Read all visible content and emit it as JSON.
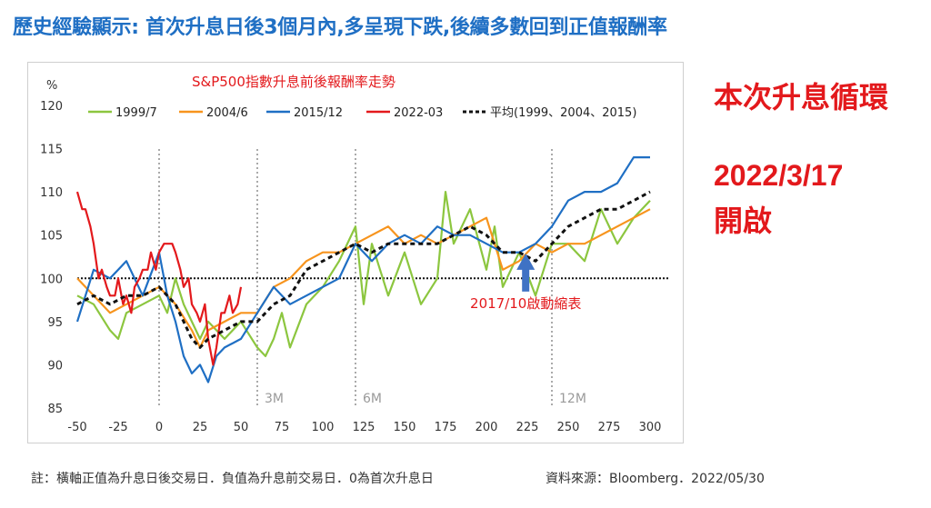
{
  "page": {
    "title": "歷史經驗顯示: 首次升息日後3個月內,多呈現下跌,後續多數回到正值報酬率",
    "side_label": "本次升息循環",
    "side_date": "2022/3/17",
    "side_open": "開啟",
    "footnote": "註：橫軸正值為升息日後交易日．負值為升息前交易日．0為首次升息日",
    "source": "資料來源：Bloomberg．2022/05/30"
  },
  "colors": {
    "s1999": "#8cc63f",
    "s2004": "#f7941d",
    "s2015": "#1f6fc4",
    "s2022": "#e3191c",
    "avg": "#111111",
    "title_red": "#e3191c",
    "arrow": "#3f72c4",
    "grid_marker": "#aaaaaa"
  },
  "chart_data": {
    "type": "line",
    "title": "S&P500指數升息前後報酬率走勢",
    "ylabel": "%",
    "xlim": [
      -50,
      300
    ],
    "ylim": [
      85,
      120
    ],
    "xticks": [
      -50,
      -25,
      0,
      25,
      50,
      75,
      100,
      125,
      150,
      175,
      200,
      225,
      250,
      275,
      300
    ],
    "yticks": [
      85,
      90,
      95,
      100,
      105,
      110,
      115,
      120
    ],
    "reference_line": 100,
    "vertical_markers": [
      0,
      60,
      120,
      240
    ],
    "period_labels": [
      {
        "x": 60,
        "label": "3M"
      },
      {
        "x": 120,
        "label": "6M"
      },
      {
        "x": 240,
        "label": "12M"
      }
    ],
    "annotation": {
      "text": "2017/10啟動縮表",
      "x": 224,
      "y": 97
    },
    "series": [
      {
        "name": "1999/7",
        "color_key": "s1999",
        "dashed": false,
        "x": [
          -50,
          -40,
          -30,
          -25,
          -20,
          -10,
          0,
          5,
          10,
          15,
          20,
          25,
          30,
          40,
          50,
          60,
          65,
          70,
          75,
          80,
          90,
          100,
          110,
          120,
          125,
          130,
          140,
          150,
          160,
          170,
          175,
          180,
          190,
          200,
          205,
          210,
          220,
          230,
          240,
          250,
          260,
          270,
          280,
          290,
          300
        ],
        "y": [
          98,
          97,
          94,
          93,
          96,
          97,
          98,
          96,
          100,
          97,
          95,
          93,
          95,
          93,
          95,
          92,
          91,
          93,
          96,
          92,
          97,
          99,
          102,
          106,
          97,
          104,
          98,
          103,
          97,
          100,
          110,
          104,
          108,
          101,
          106,
          99,
          103,
          98,
          104,
          104,
          102,
          108,
          104,
          107,
          109
        ]
      },
      {
        "name": "2004/6",
        "color_key": "s2004",
        "dashed": false,
        "x": [
          -50,
          -40,
          -30,
          -20,
          -10,
          0,
          10,
          20,
          25,
          30,
          40,
          50,
          60,
          70,
          80,
          90,
          100,
          110,
          120,
          130,
          140,
          150,
          160,
          170,
          180,
          190,
          200,
          210,
          220,
          230,
          240,
          250,
          260,
          270,
          280,
          290,
          300
        ],
        "y": [
          100,
          98,
          96,
          97,
          98,
          99,
          97,
          94,
          92,
          94,
          95,
          96,
          96,
          99,
          100,
          102,
          103,
          103,
          104,
          105,
          106,
          104,
          105,
          104,
          105,
          106,
          107,
          101,
          102,
          104,
          103,
          104,
          104,
          105,
          106,
          107,
          108
        ]
      },
      {
        "name": "2015/12",
        "color_key": "s2015",
        "dashed": false,
        "x": [
          -50,
          -40,
          -30,
          -20,
          -10,
          0,
          5,
          10,
          15,
          20,
          25,
          30,
          35,
          40,
          50,
          60,
          70,
          80,
          90,
          100,
          110,
          120,
          130,
          140,
          150,
          160,
          170,
          180,
          190,
          200,
          210,
          220,
          230,
          240,
          250,
          260,
          270,
          280,
          290,
          300
        ],
        "y": [
          95,
          101,
          100,
          102,
          98,
          103,
          98,
          95,
          91,
          89,
          90,
          88,
          91,
          92,
          93,
          96,
          99,
          97,
          98,
          99,
          100,
          104,
          102,
          104,
          105,
          104,
          106,
          105,
          105,
          104,
          103,
          103,
          104,
          106,
          109,
          110,
          110,
          111,
          114,
          114
        ]
      },
      {
        "name": "2022-03",
        "color_key": "s2022",
        "dashed": false,
        "x": [
          -50,
          -47,
          -45,
          -42,
          -40,
          -37,
          -35,
          -32,
          -30,
          -27,
          -25,
          -22,
          -20,
          -17,
          -15,
          -12,
          -10,
          -7,
          -5,
          -2,
          0,
          3,
          5,
          8,
          10,
          13,
          15,
          18,
          20,
          23,
          25,
          28,
          30,
          33,
          35,
          38,
          40,
          43,
          45,
          48,
          50
        ],
        "y": [
          110,
          108,
          108,
          106,
          104,
          100,
          101,
          99,
          98,
          98,
          100,
          97,
          98,
          96,
          99,
          100,
          101,
          101,
          103,
          101,
          103,
          104,
          104,
          104,
          103,
          101,
          99,
          100,
          97,
          96,
          95,
          97,
          93,
          90,
          92,
          96,
          96,
          98,
          96,
          97,
          99
        ]
      },
      {
        "name": "平均(1999、2004、2015)",
        "color_key": "avg",
        "dashed": true,
        "x": [
          -50,
          -40,
          -30,
          -20,
          -10,
          0,
          10,
          20,
          25,
          30,
          40,
          50,
          60,
          70,
          80,
          90,
          100,
          110,
          120,
          130,
          140,
          150,
          160,
          170,
          180,
          190,
          200,
          210,
          220,
          230,
          240,
          250,
          260,
          270,
          280,
          290,
          300
        ],
        "y": [
          97,
          98,
          97,
          98,
          98,
          99,
          97,
          93,
          92,
          93,
          94,
          95,
          95,
          97,
          98,
          101,
          102,
          103,
          104,
          103,
          104,
          104,
          104,
          104,
          105,
          106,
          105,
          103,
          103,
          102,
          104,
          106,
          107,
          108,
          108,
          109,
          110
        ]
      }
    ]
  }
}
